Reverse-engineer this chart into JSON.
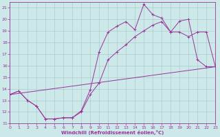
{
  "xlabel": "Windchill (Refroidissement éolien,°C)",
  "bg_color": "#cce8e8",
  "grid_color": "#aacccc",
  "line_color": "#993399",
  "xlim": [
    0,
    23
  ],
  "ylim": [
    11,
    21.5
  ],
  "yticks": [
    11,
    12,
    13,
    14,
    15,
    16,
    17,
    18,
    19,
    20,
    21
  ],
  "xticks": [
    0,
    1,
    2,
    3,
    4,
    5,
    6,
    7,
    8,
    9,
    10,
    11,
    12,
    13,
    14,
    15,
    16,
    17,
    18,
    19,
    20,
    21,
    22,
    23
  ],
  "curve1_x": [
    0,
    1,
    2,
    3,
    4,
    5,
    6,
    7,
    8,
    9,
    10,
    11,
    12,
    13,
    14,
    15,
    16,
    17,
    18,
    19,
    20,
    21,
    22,
    23
  ],
  "curve1_y": [
    13.5,
    13.8,
    13.0,
    12.5,
    11.4,
    11.4,
    11.5,
    11.5,
    12.1,
    13.9,
    17.2,
    18.9,
    19.4,
    19.8,
    19.1,
    21.3,
    20.4,
    20.1,
    18.9,
    19.85,
    20.0,
    16.5,
    15.9,
    15.9
  ],
  "curve2_x": [
    0,
    1,
    2,
    3,
    4,
    5,
    6,
    7,
    8,
    9,
    10,
    11,
    12,
    13,
    14,
    15,
    16,
    17,
    18,
    19,
    20,
    21,
    22,
    23
  ],
  "curve2_y": [
    13.5,
    13.8,
    13.0,
    12.5,
    11.4,
    11.4,
    11.5,
    11.5,
    12.0,
    13.5,
    14.5,
    16.5,
    17.2,
    17.8,
    18.5,
    19.0,
    19.5,
    19.8,
    18.9,
    18.9,
    18.5,
    18.9,
    18.9,
    15.9
  ],
  "line_x": [
    0,
    23
  ],
  "line_y": [
    13.5,
    15.9
  ]
}
